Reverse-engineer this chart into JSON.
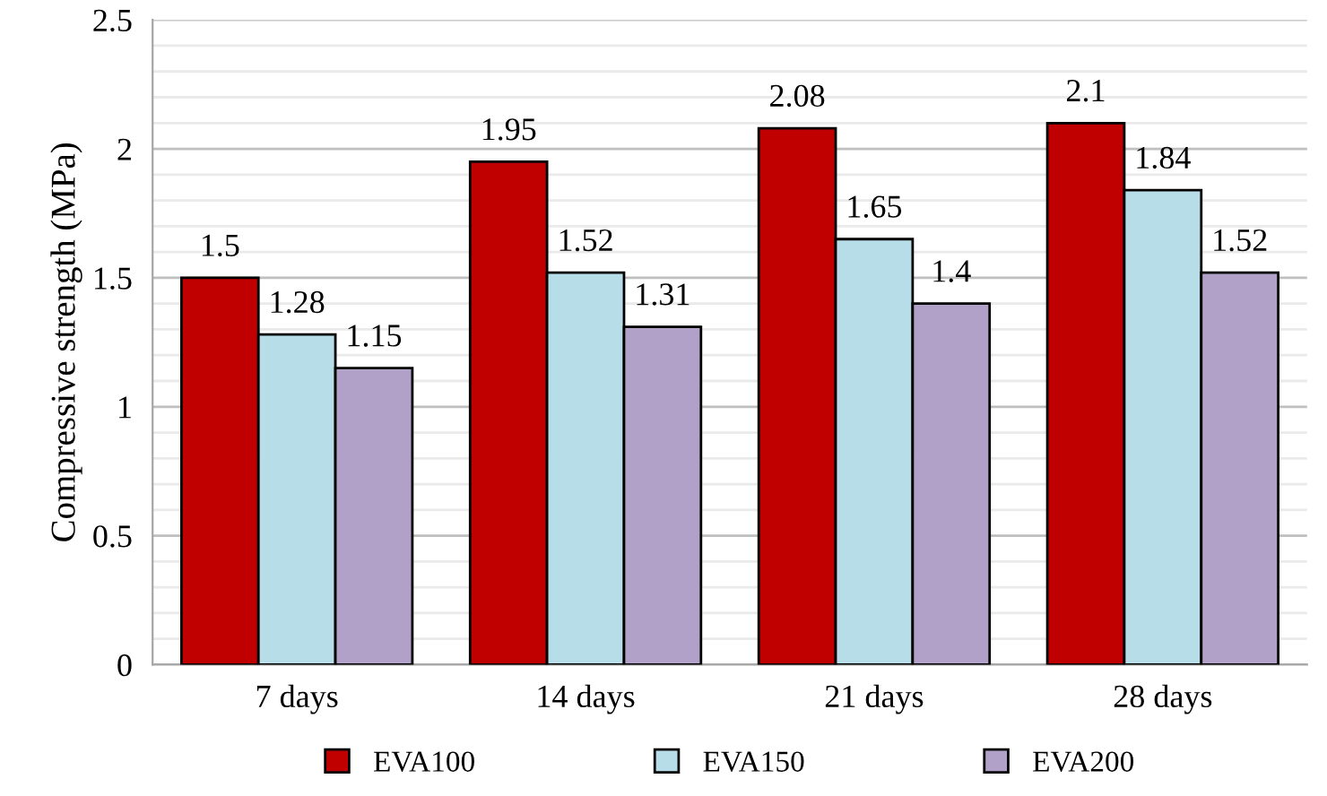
{
  "chart_data": {
    "type": "bar",
    "ylabel": "Compressive strength (MPa)",
    "categories": [
      "7 days",
      "14 days",
      "21 days",
      "28 days"
    ],
    "series": [
      {
        "name": "EVA100",
        "color": "#c00000",
        "values": [
          1.5,
          1.95,
          2.08,
          2.1
        ]
      },
      {
        "name": "EVA150",
        "color": "#b7dee8",
        "values": [
          1.28,
          1.52,
          1.65,
          1.84
        ]
      },
      {
        "name": "EVA200",
        "color": "#b1a0c7",
        "values": [
          1.15,
          1.31,
          1.4,
          1.52
        ]
      }
    ],
    "ylim": [
      0,
      2.5
    ],
    "yticks": [
      0,
      0.5,
      1,
      1.5,
      2,
      2.5
    ],
    "grid": "y",
    "legend": "bottom",
    "data_labels": true
  }
}
